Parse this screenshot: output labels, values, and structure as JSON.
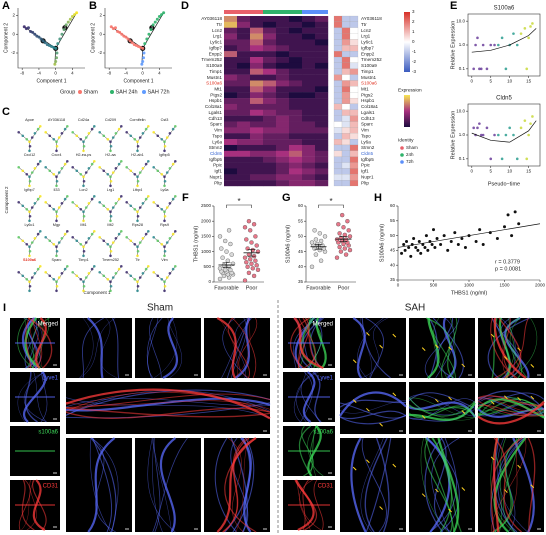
{
  "panel_a": {
    "label": "A",
    "xlabel": "Component 1",
    "ylabel": "Component 2",
    "xlim": [
      -9,
      7
    ],
    "xticks": [
      -8,
      -4,
      0,
      4
    ],
    "ylim": [
      -3.6,
      2.8
    ],
    "yticks": [
      -2,
      0,
      2
    ],
    "x": [
      -7.5,
      -7,
      -6.5,
      -6,
      -5.5,
      -5,
      -4.5,
      -4,
      -3.5,
      -3,
      -2.5,
      -2,
      -1.5,
      -1,
      -0.5,
      0,
      0.5,
      1,
      1.5,
      2,
      2.5,
      3,
      3.5,
      4,
      4.5,
      5,
      0.3,
      0.2,
      0,
      -0.2
    ],
    "y": [
      0.8,
      0.6,
      0.7,
      0.3,
      0.2,
      0,
      -0.2,
      -0.3,
      -0.5,
      -0.7,
      -0.9,
      -1.1,
      -1.2,
      -1.3,
      -1.4,
      -1.5,
      -1,
      -0.5,
      0,
      0.5,
      1,
      1.3,
      1.6,
      1.9,
      2.1,
      2.3,
      -2,
      -2.5,
      -2.9,
      -3.2
    ],
    "pseudotime": [
      0,
      0.5,
      1,
      1.5,
      2,
      2.5,
      3,
      3.5,
      4,
      4.5,
      5,
      5.5,
      6,
      6.5,
      7,
      7.5,
      8,
      8.5,
      9,
      9.5,
      10,
      11,
      12,
      13,
      14,
      15,
      9,
      10,
      11,
      12
    ],
    "colormap": [
      "#3b2a6b",
      "#2a8a8e",
      "#f9e721"
    ],
    "branch_labels": [
      "1",
      "2",
      "3"
    ]
  },
  "panel_b": {
    "label": "B",
    "xlabel": "Component 1",
    "ylabel": "Component 2",
    "xlim": [
      -9,
      7
    ],
    "xticks": [
      -8,
      -4,
      0,
      4
    ],
    "ylim": [
      -3.6,
      2.8
    ],
    "yticks": [
      -2,
      0,
      2
    ],
    "branch_labels": [
      "1",
      "2",
      "3"
    ],
    "legend_title": "Group",
    "series": [
      {
        "name": "Sham",
        "color": "#f8766d",
        "x": [
          -7.5,
          -7,
          -6.5,
          -6,
          -5.5,
          -5,
          -4.5,
          -4,
          -3.5,
          -3,
          -2.5,
          -2,
          -1.5,
          -1,
          -0.5,
          0
        ],
        "y": [
          0.8,
          0.6,
          0.7,
          0.3,
          0.2,
          0,
          -0.2,
          -0.3,
          -0.5,
          -0.7,
          -0.9,
          -1.1,
          -1.2,
          -1.3,
          -1.4,
          -1.5
        ]
      },
      {
        "name": "SAH 24h",
        "color": "#2fb36b",
        "x": [
          0.5,
          1,
          1.5,
          2,
          2.5,
          3,
          3.5,
          4,
          4.5,
          5
        ],
        "y": [
          -1,
          -0.5,
          0,
          0.5,
          1,
          1.3,
          1.6,
          1.9,
          2.1,
          2.3
        ]
      },
      {
        "name": "SAH 72h",
        "color": "#619cff",
        "x": [
          0.3,
          0.2,
          0,
          -0.2
        ],
        "y": [
          -2,
          -2.5,
          -2.9,
          -3.2
        ]
      }
    ]
  },
  "panel_c": {
    "label": "C",
    "xlabel": "Component 1",
    "ylabel": "Component 2",
    "highlight_index": 24,
    "genes": [
      "Apoe",
      "AY036118",
      "Cd24a",
      "Cd209",
      "Cornifelin",
      "Cst3",
      "Cxcl12",
      "Cxcr4",
      "H2-ea-ps",
      "H2-aa",
      "H2-ab1",
      "Igfbp5",
      "Igfbp7",
      "Il33",
      "Lcn2",
      "Lrg1",
      "Ltbp4",
      "Ly6a",
      "Ly6c1",
      "Mgp",
      "Mt1",
      "Mt2",
      "Rps28",
      "Rps9",
      "S100a6",
      "Sparc",
      "Timp1",
      "Tmem252",
      "Ttr",
      "Vim"
    ]
  },
  "panel_d": {
    "label": "D",
    "genes": [
      "AY036118",
      "Ttr",
      "Lcn2",
      "Lrg1",
      "Ly6c1",
      "Igfbp7",
      "Enpp2",
      "Tmem252",
      "S100a9",
      "Timp1",
      "Mustn1",
      "S100a6",
      "Mt1",
      "Ptgs2",
      "Hspb1",
      "Col18a1",
      "Lgals1",
      "Cdh13",
      "Sparc",
      "Vim",
      "Tspo",
      "Ly6a",
      "Stmn2",
      "Cldn5",
      "Igfbp5",
      "Ppic",
      "Igf1",
      "Nupr1",
      "Pltp"
    ],
    "highlight": [
      {
        "index": 11,
        "color": "#e0301e"
      },
      {
        "index": 23,
        "color": "#2f5fd0"
      }
    ],
    "elim": [
      0,
      8
    ],
    "expression_colors": [
      "#1d0b3f",
      "#a8307e",
      "#f8e552"
    ],
    "expression_title": "Expression",
    "expression": [
      [
        6,
        2,
        1,
        1,
        1,
        0,
        1,
        2
      ],
      [
        7,
        3,
        1,
        0,
        1,
        1,
        0,
        1
      ],
      [
        2,
        1,
        5,
        2,
        1,
        0,
        1,
        1
      ],
      [
        3,
        1,
        6,
        3,
        1,
        1,
        0,
        1
      ],
      [
        2,
        2,
        5,
        2,
        1,
        1,
        1,
        0
      ],
      [
        1,
        2,
        4,
        3,
        2,
        1,
        1,
        1
      ],
      [
        5,
        1,
        1,
        1,
        0,
        1,
        1,
        1
      ],
      [
        1,
        1,
        4,
        2,
        1,
        0,
        1,
        1
      ],
      [
        1,
        0,
        3,
        1,
        0,
        0,
        1,
        0
      ],
      [
        1,
        1,
        5,
        4,
        2,
        1,
        1,
        1
      ],
      [
        3,
        2,
        1,
        1,
        2,
        1,
        1,
        1
      ],
      [
        2,
        2,
        6,
        5,
        3,
        2,
        1,
        1
      ],
      [
        1,
        1,
        5,
        3,
        1,
        1,
        1,
        0
      ],
      [
        0,
        1,
        3,
        2,
        1,
        0,
        0,
        1
      ],
      [
        2,
        2,
        5,
        3,
        2,
        1,
        1,
        1
      ],
      [
        3,
        2,
        2,
        2,
        2,
        1,
        1,
        1
      ],
      [
        2,
        2,
        4,
        3,
        2,
        2,
        1,
        1
      ],
      [
        1,
        1,
        1,
        2,
        3,
        2,
        1,
        1
      ],
      [
        2,
        3,
        2,
        2,
        3,
        2,
        2,
        1
      ],
      [
        3,
        3,
        4,
        3,
        3,
        2,
        2,
        2
      ],
      [
        1,
        1,
        3,
        2,
        2,
        1,
        1,
        1
      ],
      [
        4,
        3,
        3,
        2,
        2,
        2,
        1,
        1
      ],
      [
        0,
        1,
        1,
        1,
        2,
        4,
        3,
        1
      ],
      [
        4,
        4,
        3,
        3,
        4,
        5,
        3,
        2
      ],
      [
        1,
        1,
        1,
        2,
        3,
        4,
        3,
        2
      ],
      [
        1,
        1,
        1,
        1,
        2,
        3,
        2,
        1
      ],
      [
        0,
        1,
        1,
        1,
        2,
        4,
        3,
        2
      ],
      [
        1,
        1,
        2,
        2,
        3,
        3,
        2,
        1
      ],
      [
        1,
        1,
        1,
        1,
        2,
        3,
        3,
        2
      ]
    ],
    "zlim": [
      -3,
      3
    ],
    "zticks": [
      3,
      2,
      1,
      0,
      -1,
      -2,
      -3
    ],
    "zscore_colors": [
      "#3a5bbf",
      "#ffffff",
      "#d73027"
    ],
    "zscore": [
      [
        2,
        -1,
        -1
      ],
      [
        2,
        -1,
        -1
      ],
      [
        -1,
        2,
        0
      ],
      [
        -1,
        2,
        0
      ],
      [
        -1,
        1.5,
        0.5
      ],
      [
        -1,
        1,
        1
      ],
      [
        2,
        -1,
        -1
      ],
      [
        -1,
        2,
        0
      ],
      [
        -1,
        2,
        -0.5
      ],
      [
        -1,
        1,
        1.5
      ],
      [
        1.5,
        0,
        -1
      ],
      [
        -1,
        1.5,
        1
      ],
      [
        -1,
        2,
        0
      ],
      [
        -1,
        1.5,
        0
      ],
      [
        -1,
        1.5,
        0.5
      ],
      [
        1,
        0,
        -1
      ],
      [
        -1,
        1,
        1
      ],
      [
        -1,
        -0.5,
        1.5
      ],
      [
        0,
        -0.5,
        1
      ],
      [
        -0.5,
        0.5,
        1
      ],
      [
        -1,
        1,
        0.5
      ],
      [
        1,
        0.5,
        -1
      ],
      [
        -1,
        -1,
        2
      ],
      [
        0.5,
        -1,
        1
      ],
      [
        -1,
        -1,
        2
      ],
      [
        -1,
        -0.5,
        1.5
      ],
      [
        -1,
        -1,
        2
      ],
      [
        -0.5,
        -0.5,
        1.5
      ],
      [
        -1,
        -1,
        2
      ]
    ],
    "identity_title": "Identity",
    "identity": [
      {
        "name": "Sham",
        "color": "#e8606a"
      },
      {
        "name": "24h",
        "color": "#2fb36b"
      },
      {
        "name": "72h",
        "color": "#5b8ff9"
      }
    ]
  },
  "panel_e": {
    "label": "E",
    "ylabel": "Relative Expression",
    "xlabel": "Pseudo−time",
    "xlim": [
      -1,
      18
    ],
    "xticks": [
      0,
      5,
      10,
      15
    ],
    "ylim": [
      0.05,
      20
    ],
    "yticks": [
      0.1,
      {
        "value": 1,
        "label": "1.0"
      },
      {
        "value": 10,
        "label": "10.0"
      }
    ],
    "plots": [
      {
        "title": "S100a6",
        "series": [
          {
            "color": "#6a3d9a",
            "x": [
              0.5,
              1,
              2,
              3,
              4,
              5,
              6,
              1.5,
              2.5
            ],
            "y": [
              0.1,
              1,
              0.1,
              1,
              0.1,
              1,
              1,
              2,
              0.1
            ]
          },
          {
            "color": "#2a9d8f",
            "x": [
              7,
              8,
              9,
              10,
              11,
              12
            ],
            "y": [
              1,
              2,
              0.1,
              1,
              3,
              1
            ]
          },
          {
            "color": "#c9d93b",
            "x": [
              13,
              14,
              15,
              16,
              14.5,
              15.5
            ],
            "y": [
              3,
              5,
              2,
              8,
              0.1,
              6
            ]
          }
        ],
        "fit": {
          "x": [
            0,
            5,
            10,
            15,
            17
          ],
          "y": [
            0.5,
            0.6,
            1,
            2.5,
            5
          ]
        }
      },
      {
        "title": "Cldn5",
        "series": [
          {
            "color": "#6a3d9a",
            "x": [
              0.5,
              1,
              2,
              3,
              4,
              5,
              6,
              1.5,
              2.5
            ],
            "y": [
              2,
              1,
              3,
              1,
              2,
              0.1,
              1,
              2,
              1
            ]
          },
          {
            "color": "#2a9d8f",
            "x": [
              7,
              8,
              9,
              10,
              11,
              12
            ],
            "y": [
              1,
              0.1,
              1,
              2,
              1,
              0.1
            ]
          },
          {
            "color": "#c9d93b",
            "x": [
              13,
              14,
              15,
              16,
              14.5,
              15.5
            ],
            "y": [
              2,
              4,
              1,
              6,
              0.1,
              3
            ]
          }
        ],
        "fit": {
          "x": [
            0,
            5,
            10,
            15,
            17
          ],
          "y": [
            1.2,
            0.6,
            0.5,
            1.5,
            4
          ]
        }
      }
    ]
  },
  "panel_f": {
    "label": "F",
    "ylabel": "THBS1 (ng/ml)",
    "categories": [
      "Favorable",
      "Poor"
    ],
    "ylim": [
      0,
      2500
    ],
    "yticks": [
      0,
      500,
      1000,
      1500,
      2000,
      2500
    ],
    "values": [
      [
        100,
        150,
        200,
        250,
        250,
        300,
        300,
        350,
        350,
        400,
        400,
        450,
        500,
        550,
        600,
        700,
        800,
        900,
        1000,
        1100,
        1250,
        1350,
        1500,
        1700
      ],
      [
        50,
        200,
        300,
        400,
        450,
        500,
        550,
        600,
        650,
        700,
        750,
        800,
        850,
        900,
        1000,
        1050,
        1100,
        1200,
        1300,
        1400,
        1500,
        1700,
        1800,
        1900,
        2000
      ]
    ],
    "colors": [
      "#d9d9d9",
      "#e8788a"
    ],
    "means": [
      560,
      960
    ],
    "errors": [
      90,
      110
    ],
    "significance": "*"
  },
  "panel_g": {
    "label": "G",
    "ylabel": "S100A6 (ng/ml)",
    "categories": [
      "Favorable",
      "Poor"
    ],
    "ylim": [
      35,
      60
    ],
    "yticks": [
      35,
      40,
      45,
      50,
      55,
      60
    ],
    "values": [
      [
        40,
        42,
        44,
        45,
        45.5,
        46,
        46,
        46.5,
        47,
        47,
        47.5,
        48,
        48.5,
        49,
        50,
        51,
        52
      ],
      [
        43,
        44,
        45,
        45.5,
        46,
        46.5,
        47,
        47.5,
        48,
        48,
        48.5,
        49,
        49,
        49.5,
        50,
        50.5,
        51,
        52,
        53,
        54,
        55,
        57
      ]
    ],
    "colors": [
      "#d9d9d9",
      "#e8788a"
    ],
    "means": [
      46.6,
      49.1
    ],
    "errors": [
      0.8,
      0.8
    ],
    "significance": "*"
  },
  "panel_h": {
    "label": "H",
    "xlabel": "THBS1 (ng/ml)",
    "ylabel": "S100A6 (ng/ml)",
    "xlim": [
      0,
      2000
    ],
    "xticks": [
      0,
      500,
      1000,
      1500,
      2000
    ],
    "ylim": [
      35,
      60
    ],
    "yticks": [
      35,
      40,
      45,
      50,
      55,
      60
    ],
    "x": [
      50,
      80,
      100,
      120,
      150,
      180,
      200,
      220,
      250,
      280,
      300,
      320,
      350,
      380,
      400,
      420,
      450,
      480,
      500,
      520,
      550,
      600,
      650,
      700,
      750,
      800,
      850,
      900,
      950,
      1000,
      1100,
      1150,
      1200,
      1300,
      1400,
      1500,
      1550,
      1600,
      1650,
      1700
    ],
    "y": [
      44,
      47,
      45,
      48,
      46,
      43,
      47,
      49,
      46,
      45,
      48,
      44,
      47,
      46,
      50,
      45,
      48,
      47,
      52,
      46,
      49,
      47,
      50,
      45,
      48,
      51,
      47,
      49,
      46,
      50,
      48,
      52,
      47,
      51,
      49,
      53,
      57,
      50,
      58,
      54
    ],
    "fit_intercept": 46,
    "fit_slope": 0.004,
    "annotations": [
      "r = 0.3779",
      "p = 0.0081"
    ]
  },
  "panel_i": {
    "label": "I",
    "groups": [
      "Sham",
      "SAH"
    ],
    "channels": [
      "Merged",
      "Lyve1",
      "s100a6",
      "CD31"
    ],
    "channel_colors": [
      "#ffffff",
      "#5a6bff",
      "#3ddc5a",
      "#ff3b3b"
    ]
  }
}
